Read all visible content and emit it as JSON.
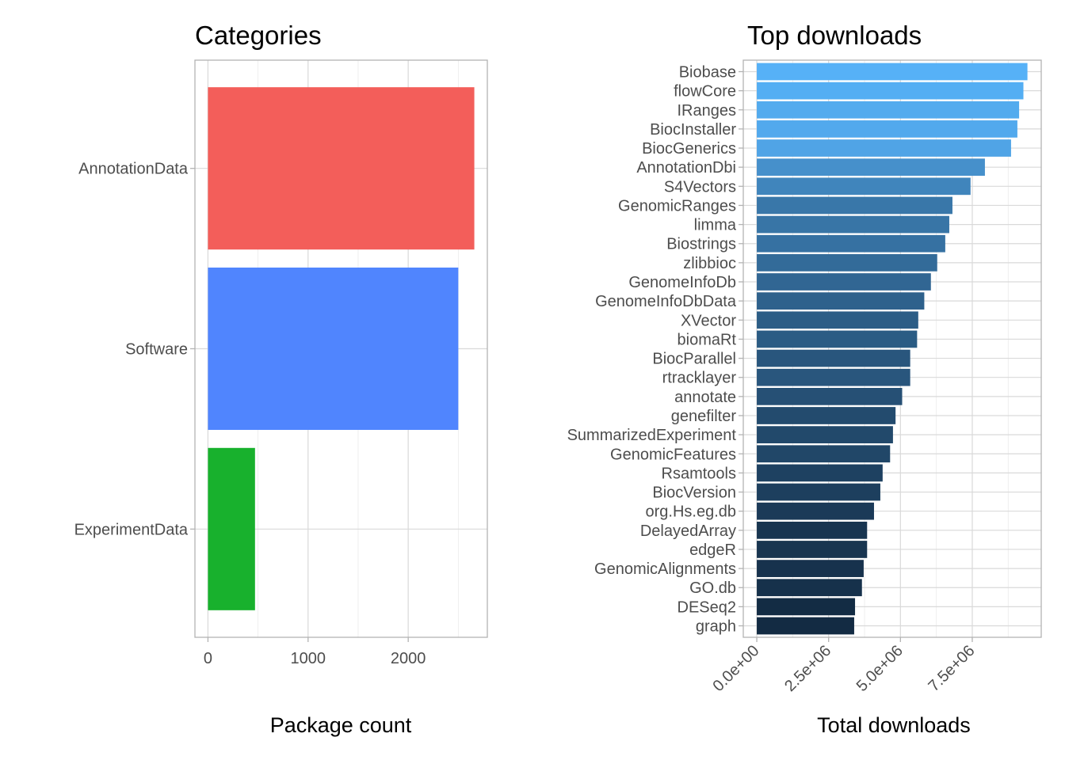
{
  "chart_data": [
    {
      "type": "bar",
      "orientation": "horizontal",
      "title": "Categories",
      "xlabel": "Package count",
      "ylabel": "",
      "categories": [
        "AnnotationData",
        "Software",
        "ExperimentData"
      ],
      "values": [
        2660,
        2500,
        470
      ],
      "colors": [
        "#F35E5A",
        "#5085FE",
        "#18B12D"
      ],
      "xlim": [
        -130,
        2790
      ],
      "xticks": [
        0,
        1000,
        2000
      ],
      "xtick_labels": [
        "0",
        "1000",
        "2000"
      ],
      "grid": true
    },
    {
      "type": "bar",
      "orientation": "horizontal",
      "title": "Top downloads",
      "xlabel": "Total downloads",
      "ylabel": "",
      "categories": [
        "Biobase",
        "flowCore",
        "IRanges",
        "BiocInstaller",
        "BiocGenerics",
        "AnnotationDbi",
        "S4Vectors",
        "GenomicRanges",
        "limma",
        "Biostrings",
        "zlibbioc",
        "GenomeInfoDb",
        "GenomeInfoDbData",
        "XVector",
        "biomaRt",
        "BiocParallel",
        "rtracklayer",
        "annotate",
        "genefilter",
        "SummarizedExperiment",
        "GenomicFeatures",
        "Rsamtools",
        "BiocVersion",
        "org.Hs.eg.db",
        "DelayedArray",
        "edgeR",
        "GenomicAlignments",
        "GO.db",
        "DESeq2",
        "graph"
      ],
      "values": [
        9420000,
        9280000,
        9130000,
        9070000,
        8850000,
        7940000,
        7440000,
        6810000,
        6700000,
        6560000,
        6280000,
        6060000,
        5830000,
        5620000,
        5580000,
        5340000,
        5340000,
        5060000,
        4830000,
        4740000,
        4640000,
        4380000,
        4300000,
        4080000,
        3840000,
        3840000,
        3720000,
        3660000,
        3420000,
        3390000
      ],
      "color_low": "#132B43",
      "color_high": "#56B1F7",
      "xlim": [
        -470000,
        9900000
      ],
      "xticks": [
        0,
        2500000,
        5000000,
        7500000
      ],
      "xtick_labels": [
        "0.0e+00",
        "2.5e+06",
        "5.0e+06",
        "7.5e+06"
      ],
      "grid": true
    }
  ]
}
